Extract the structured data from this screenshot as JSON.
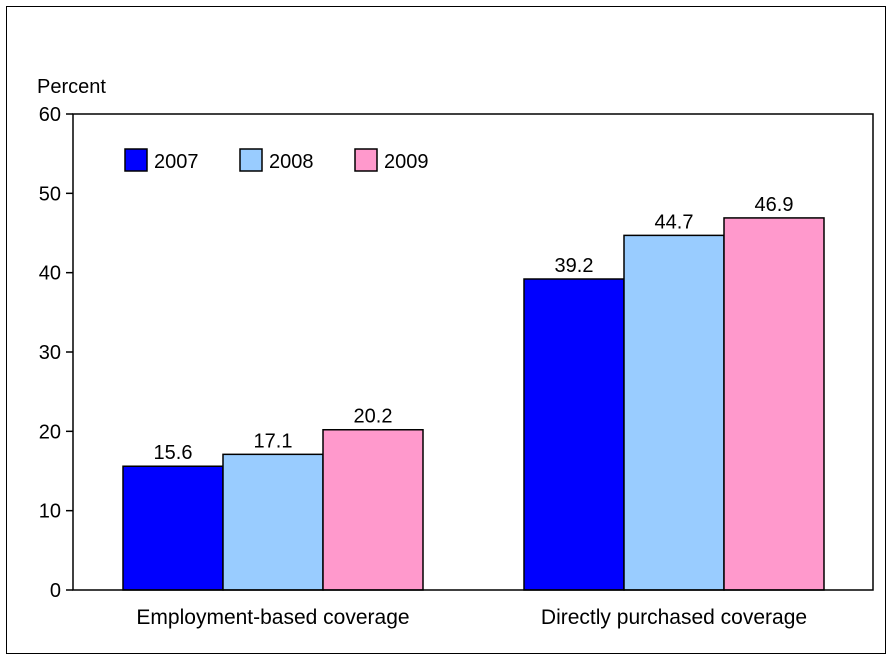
{
  "chart_data": {
    "type": "bar",
    "title": "",
    "ylabel": "Percent",
    "xlabel": "",
    "ylim": [
      0,
      60
    ],
    "yticks": [
      0,
      10,
      20,
      30,
      40,
      50,
      60
    ],
    "categories": [
      "Employment-based coverage",
      "Directly purchased coverage"
    ],
    "series": [
      {
        "name": "2007",
        "color": "#0000ff",
        "values": [
          15.6,
          39.2
        ]
      },
      {
        "name": "2008",
        "color": "#99ccff",
        "values": [
          17.1,
          44.7
        ]
      },
      {
        "name": "2009",
        "color": "#ff99cc",
        "values": [
          20.2,
          46.9
        ]
      }
    ],
    "value_labels": [
      [
        "15.6",
        "39.2"
      ],
      [
        "17.1",
        "44.7"
      ],
      [
        "20.2",
        "46.9"
      ]
    ],
    "legend_placement": "top-left",
    "grid": false
  }
}
